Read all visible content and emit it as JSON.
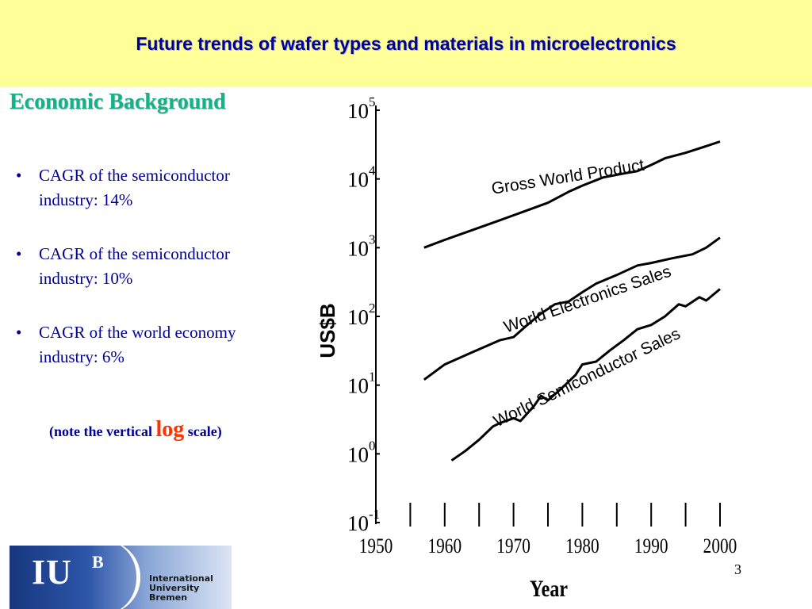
{
  "header": {
    "title": "Future trends of wafer types and materials in microelectronics"
  },
  "section": {
    "heading": "Economic Background"
  },
  "bullets": [
    {
      "line1": "CAGR of the semiconductor",
      "line2": "industry: 14%"
    },
    {
      "line1": "CAGR of the semiconductor",
      "line2": "industry: 10%"
    },
    {
      "line1": "CAGR of the world economy",
      "line2": "industry: 6%"
    }
  ],
  "note": {
    "before": "(note the vertical ",
    "emphasis": "log",
    "after": " scale)"
  },
  "page_number": "3",
  "logo": {
    "mark": "IU",
    "sup": "B",
    "line1": "International",
    "line2": "University",
    "line3": "Bremen"
  },
  "colors": {
    "header_bg": "#ffff99",
    "title": "#000099",
    "heading": "#11b38a",
    "emphasis": "#ff3300"
  },
  "chart_data": {
    "type": "line",
    "xlabel": "Year",
    "ylabel": "US$B",
    "yscale": "log",
    "xlim": [
      1950,
      2000
    ],
    "ylim": [
      0.1,
      100000
    ],
    "x_tick_labels": [
      "1950",
      "1960",
      "1970",
      "1980",
      "1990",
      "2000"
    ],
    "y_ticks": [
      {
        "base": "10",
        "exp": "5"
      },
      {
        "base": "10",
        "exp": "4"
      },
      {
        "base": "10",
        "exp": "3"
      },
      {
        "base": "10",
        "exp": "2"
      },
      {
        "base": "10",
        "exp": "1"
      },
      {
        "base": "10",
        "exp": "0"
      },
      {
        "base": "10",
        "exp": "-1"
      }
    ],
    "grid": false,
    "series": [
      {
        "name": "Gross World Product",
        "label_at": [
          1978,
          9000
        ],
        "label_angle": -9,
        "points": [
          [
            1957,
            1000
          ],
          [
            1960,
            1300
          ],
          [
            1964,
            1800
          ],
          [
            1968,
            2500
          ],
          [
            1972,
            3500
          ],
          [
            1975,
            4500
          ],
          [
            1978,
            6500
          ],
          [
            1980,
            8000
          ],
          [
            1983,
            10500
          ],
          [
            1986,
            12000
          ],
          [
            1988,
            13000
          ],
          [
            1990,
            16000
          ],
          [
            1992,
            20000
          ],
          [
            1995,
            24000
          ],
          [
            1998,
            30000
          ],
          [
            2000,
            35000
          ]
        ]
      },
      {
        "name": "World Electronics Sales",
        "label_at": [
          1981,
          150
        ],
        "label_angle": -19,
        "points": [
          [
            1957,
            12
          ],
          [
            1960,
            20
          ],
          [
            1964,
            30
          ],
          [
            1968,
            45
          ],
          [
            1970,
            50
          ],
          [
            1972,
            75
          ],
          [
            1974,
            110
          ],
          [
            1976,
            150
          ],
          [
            1978,
            165
          ],
          [
            1980,
            225
          ],
          [
            1982,
            300
          ],
          [
            1985,
            400
          ],
          [
            1988,
            550
          ],
          [
            1990,
            600
          ],
          [
            1993,
            700
          ],
          [
            1996,
            800
          ],
          [
            1998,
            1000
          ],
          [
            2000,
            1400
          ]
        ]
      },
      {
        "name": "World Semiconductor Sales",
        "label_at": [
          1981,
          11
        ],
        "label_angle": -26,
        "points": [
          [
            1961,
            0.8
          ],
          [
            1963,
            1.1
          ],
          [
            1965,
            1.6
          ],
          [
            1967,
            2.5
          ],
          [
            1968,
            2.8
          ],
          [
            1970,
            3.3
          ],
          [
            1971,
            3.0
          ],
          [
            1973,
            5
          ],
          [
            1974,
            7
          ],
          [
            1975,
            6
          ],
          [
            1977,
            9
          ],
          [
            1979,
            14
          ],
          [
            1980,
            20
          ],
          [
            1982,
            22
          ],
          [
            1984,
            32
          ],
          [
            1986,
            45
          ],
          [
            1988,
            65
          ],
          [
            1990,
            75
          ],
          [
            1992,
            100
          ],
          [
            1994,
            150
          ],
          [
            1995,
            140
          ],
          [
            1997,
            190
          ],
          [
            1998,
            170
          ],
          [
            2000,
            250
          ]
        ]
      }
    ]
  }
}
